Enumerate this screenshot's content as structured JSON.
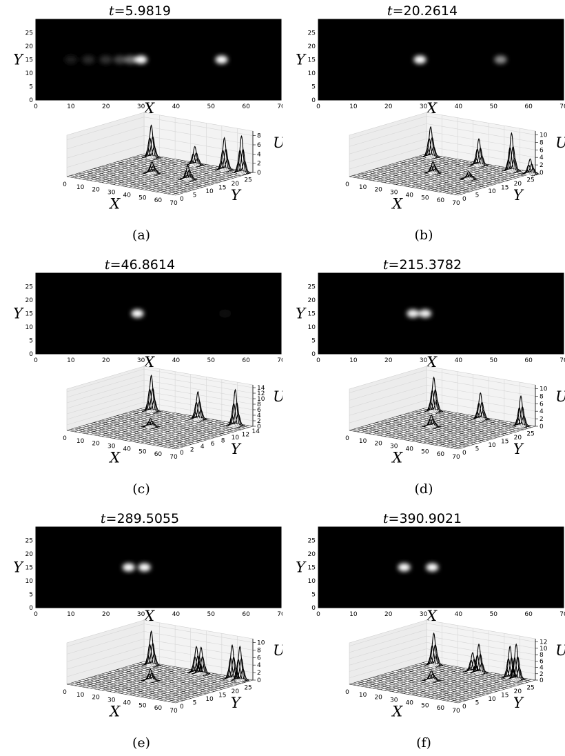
{
  "figure": {
    "panels": [
      {
        "id": "a",
        "title_var": "t",
        "title_value": "5.9819",
        "caption": "(a)",
        "heatmap": {
          "xlabel": "X",
          "ylabel": "Y",
          "xticks": [
            "0",
            "10",
            "20",
            "30",
            "40",
            "50",
            "60",
            "70"
          ],
          "yticks": [
            "0",
            "5",
            "10",
            "15",
            "20",
            "25"
          ],
          "xlim": [
            0,
            70
          ],
          "ylim": [
            0,
            30
          ],
          "blobs": [
            {
              "x": 10,
              "y": 15,
              "amp": 0.12
            },
            {
              "x": 15,
              "y": 15,
              "amp": 0.16
            },
            {
              "x": 20,
              "y": 15,
              "amp": 0.2
            },
            {
              "x": 24,
              "y": 15,
              "amp": 0.28
            },
            {
              "x": 27,
              "y": 15,
              "amp": 0.45
            },
            {
              "x": 30,
              "y": 15,
              "amp": 1.0
            },
            {
              "x": 53,
              "y": 15,
              "amp": 1.0
            }
          ]
        },
        "surface": {
          "xlabel": "X",
          "ylabel": "Y",
          "zlabel": "U",
          "xticks": [
            "0",
            "10",
            "20",
            "30",
            "40",
            "50",
            "60",
            "70"
          ],
          "yticks": [
            "0",
            "5",
            "10",
            "15",
            "20",
            "25"
          ],
          "zticks": [
            "0",
            "2",
            "4",
            "6",
            "8"
          ],
          "zmax": 9,
          "peaks": [
            {
              "x": 8,
              "y": 28,
              "amp": 7
            },
            {
              "x": 36,
              "y": 28,
              "amp": 4
            },
            {
              "x": 55,
              "y": 28,
              "amp": 7
            },
            {
              "x": 66,
              "y": 28,
              "amp": 8
            },
            {
              "x": 30,
              "y": 15,
              "amp": 2.5
            },
            {
              "x": 53,
              "y": 15,
              "amp": 3
            }
          ]
        }
      },
      {
        "id": "b",
        "title_var": "t",
        "title_value": "20.2614",
        "caption": "(b)",
        "heatmap": {
          "xlabel": "X",
          "ylabel": "Y",
          "xticks": [
            "0",
            "10",
            "20",
            "30",
            "40",
            "50",
            "60",
            "70"
          ],
          "yticks": [
            "0",
            "5",
            "10",
            "15",
            "20",
            "25"
          ],
          "xlim": [
            0,
            70
          ],
          "ylim": [
            0,
            30
          ],
          "blobs": [
            {
              "x": 29,
              "y": 15,
              "amp": 1.0
            },
            {
              "x": 52,
              "y": 15,
              "amp": 0.55
            }
          ]
        },
        "surface": {
          "xlabel": "X",
          "ylabel": "Y",
          "zlabel": "U",
          "xticks": [
            "0",
            "10",
            "20",
            "30",
            "40",
            "50",
            "60",
            "70"
          ],
          "yticks": [
            "0",
            "5",
            "10",
            "15",
            "20",
            "25"
          ],
          "zticks": [
            "0",
            "2",
            "4",
            "6",
            "8",
            "10"
          ],
          "zmax": 11,
          "peaks": [
            {
              "x": 6,
              "y": 28,
              "amp": 8
            },
            {
              "x": 37,
              "y": 28,
              "amp": 7
            },
            {
              "x": 58,
              "y": 28,
              "amp": 10
            },
            {
              "x": 70,
              "y": 28,
              "amp": 4
            },
            {
              "x": 29,
              "y": 15,
              "amp": 3
            },
            {
              "x": 52,
              "y": 15,
              "amp": 2
            }
          ]
        }
      },
      {
        "id": "c",
        "title_var": "t",
        "title_value": "46.8614",
        "caption": "(c)",
        "heatmap": {
          "xlabel": "X",
          "ylabel": "Y",
          "xticks": [
            "0",
            "10",
            "20",
            "30",
            "40",
            "50",
            "60",
            "70"
          ],
          "yticks": [
            "0",
            "5",
            "10",
            "15",
            "20",
            "25"
          ],
          "xlim": [
            0,
            70
          ],
          "ylim": [
            0,
            30
          ],
          "blobs": [
            {
              "x": 29,
              "y": 15,
              "amp": 1.0
            },
            {
              "x": 54,
              "y": 15,
              "amp": 0.05
            }
          ]
        },
        "surface": {
          "xlabel": "X",
          "ylabel": "Y",
          "zlabel": "U",
          "xticks": [
            "0",
            "10",
            "20",
            "30",
            "40",
            "50",
            "60",
            "70"
          ],
          "yticks": [
            "0",
            "2",
            "4",
            "6",
            "8",
            "10",
            "12",
            "14"
          ],
          "zticks": [
            "0",
            "2",
            "4",
            "6",
            "8",
            "10",
            "12",
            "14"
          ],
          "zmax": 15,
          "peaks": [
            {
              "x": 8,
              "y": 28,
              "amp": 13
            },
            {
              "x": 38,
              "y": 28,
              "amp": 10
            },
            {
              "x": 62,
              "y": 28,
              "amp": 13
            },
            {
              "x": 29,
              "y": 15,
              "amp": 3
            }
          ]
        }
      },
      {
        "id": "d",
        "title_var": "t",
        "title_value": "215.3782",
        "caption": "(d)",
        "heatmap": {
          "xlabel": "X",
          "ylabel": "Y",
          "xticks": [
            "0",
            "10",
            "20",
            "30",
            "40",
            "50",
            "60",
            "70"
          ],
          "yticks": [
            "0",
            "5",
            "10",
            "15",
            "20",
            "25"
          ],
          "xlim": [
            0,
            70
          ],
          "ylim": [
            0,
            30
          ],
          "blobs": [
            {
              "x": 27,
              "y": 15,
              "amp": 0.95
            },
            {
              "x": 30.5,
              "y": 15,
              "amp": 0.95
            }
          ]
        },
        "surface": {
          "xlabel": "X",
          "ylabel": "Y",
          "zlabel": "U",
          "xticks": [
            "0",
            "10",
            "20",
            "30",
            "40",
            "50",
            "60",
            "70"
          ],
          "yticks": [
            "0",
            "5",
            "10",
            "15",
            "20",
            "25"
          ],
          "zticks": [
            "0",
            "2",
            "4",
            "6",
            "8",
            "10"
          ],
          "zmax": 11,
          "peaks": [
            {
              "x": 8,
              "y": 28,
              "amp": 9
            },
            {
              "x": 38,
              "y": 28,
              "amp": 7
            },
            {
              "x": 64,
              "y": 28,
              "amp": 8
            },
            {
              "x": 28,
              "y": 15,
              "amp": 3
            }
          ]
        }
      },
      {
        "id": "e",
        "title_var": "t",
        "title_value": "289.5055",
        "caption": "(e)",
        "heatmap": {
          "xlabel": "X",
          "ylabel": "Y",
          "xticks": [
            "0",
            "10",
            "20",
            "30",
            "40",
            "50",
            "60",
            "70"
          ],
          "yticks": [
            "0",
            "5",
            "10",
            "15",
            "20",
            "25"
          ],
          "xlim": [
            0,
            70
          ],
          "ylim": [
            0,
            30
          ],
          "blobs": [
            {
              "x": 26.5,
              "y": 15,
              "amp": 1.0
            },
            {
              "x": 31,
              "y": 15,
              "amp": 1.0
            }
          ]
        },
        "surface": {
          "xlabel": "X",
          "ylabel": "Y",
          "zlabel": "U",
          "xticks": [
            "0",
            "10",
            "20",
            "30",
            "40",
            "50",
            "60",
            "70"
          ],
          "yticks": [
            "0",
            "5",
            "10",
            "15",
            "20",
            "25"
          ],
          "zticks": [
            "0",
            "2",
            "4",
            "6",
            "8",
            "10"
          ],
          "zmax": 11,
          "peaks": [
            {
              "x": 8,
              "y": 28,
              "amp": 9
            },
            {
              "x": 37,
              "y": 28,
              "amp": 7
            },
            {
              "x": 40,
              "y": 28,
              "amp": 7
            },
            {
              "x": 60,
              "y": 28,
              "amp": 9
            },
            {
              "x": 65,
              "y": 28,
              "amp": 9
            },
            {
              "x": 29,
              "y": 15,
              "amp": 3
            }
          ]
        }
      },
      {
        "id": "f",
        "title_var": "t",
        "title_value": "390.9021",
        "caption": "(f)",
        "heatmap": {
          "xlabel": "X",
          "ylabel": "Y",
          "xticks": [
            "0",
            "10",
            "20",
            "30",
            "40",
            "50",
            "60",
            "70"
          ],
          "yticks": [
            "0",
            "5",
            "10",
            "15",
            "20",
            "25"
          ],
          "xlim": [
            0,
            70
          ],
          "ylim": [
            0,
            30
          ],
          "blobs": [
            {
              "x": 24.5,
              "y": 15,
              "amp": 1.0
            },
            {
              "x": 32.5,
              "y": 15,
              "amp": 1.0
            }
          ]
        },
        "surface": {
          "xlabel": "X",
          "ylabel": "Y",
          "zlabel": "U",
          "xticks": [
            "0",
            "10",
            "20",
            "30",
            "40",
            "50",
            "60",
            "70"
          ],
          "yticks": [
            "0",
            "5",
            "10",
            "15",
            "20",
            "25"
          ],
          "zticks": [
            "0",
            "2",
            "4",
            "6",
            "8",
            "10",
            "12"
          ],
          "zmax": 13,
          "peaks": [
            {
              "x": 8,
              "y": 28,
              "amp": 10
            },
            {
              "x": 33,
              "y": 28,
              "amp": 6
            },
            {
              "x": 37,
              "y": 28,
              "amp": 9
            },
            {
              "x": 57,
              "y": 28,
              "amp": 10
            },
            {
              "x": 61,
              "y": 28,
              "amp": 11
            },
            {
              "x": 28,
              "y": 15,
              "amp": 3
            }
          ]
        }
      }
    ]
  }
}
